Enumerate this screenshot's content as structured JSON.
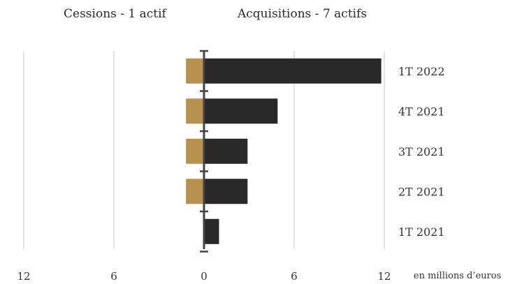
{
  "chart_data": {
    "type": "bar",
    "orientation": "horizontal",
    "title": "",
    "legend": {
      "left": "Cessions - 1 actif",
      "right": "Acquisitions - 7 actifs"
    },
    "categories": [
      "1T 2022",
      "4T 2021",
      "3T 2021",
      "2T 2021",
      "1T 2021"
    ],
    "series": [
      {
        "name": "Cessions",
        "values": [
          1.2,
          1.2,
          1.2,
          1.2,
          0
        ],
        "color": "#b8914f",
        "direction": "left"
      },
      {
        "name": "Acquisitions",
        "values": [
          11.8,
          4.9,
          2.9,
          2.9,
          1.0
        ],
        "color": "#282828",
        "direction": "right"
      }
    ],
    "xlim": [
      -12,
      12
    ],
    "x_ticks": [
      {
        "value": -12,
        "label": "12"
      },
      {
        "value": -6,
        "label": "6"
      },
      {
        "value": 0,
        "label": "0"
      },
      {
        "value": 6,
        "label": "6"
      },
      {
        "value": 12,
        "label": "12"
      }
    ],
    "unit_label": "en millions d’euros",
    "grid": true
  }
}
